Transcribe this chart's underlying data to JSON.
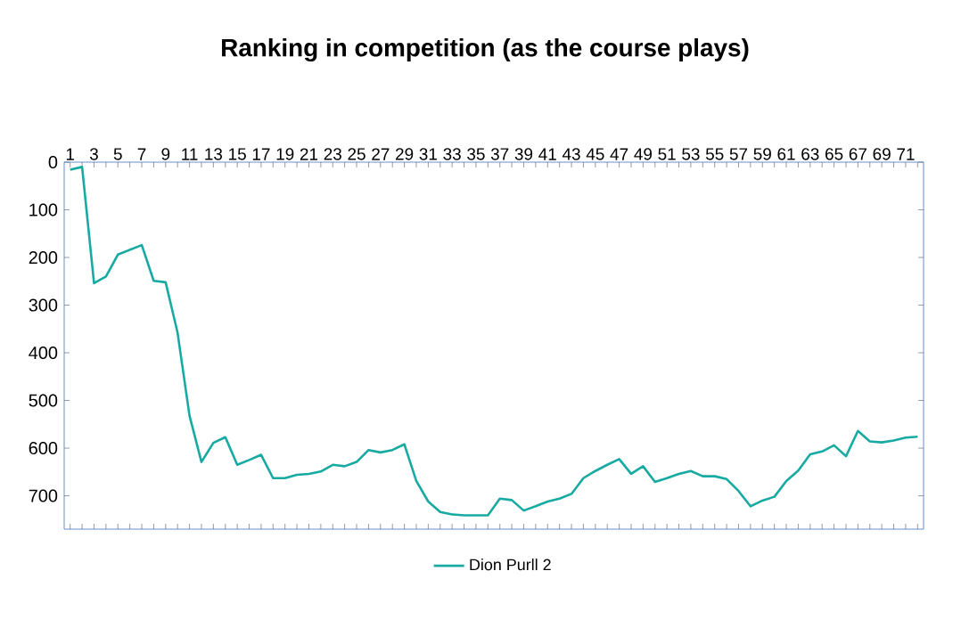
{
  "chart_data": {
    "type": "line",
    "title": "Ranking in competition (as the course plays)",
    "categories": [
      "1",
      null,
      "3",
      null,
      "5",
      null,
      "7",
      null,
      "9",
      null,
      "11",
      null,
      "13",
      null,
      "15",
      null,
      "17",
      null,
      "19",
      null,
      "21",
      null,
      "23",
      null,
      "25",
      null,
      "27",
      null,
      "29",
      null,
      "31",
      null,
      "33",
      null,
      "35",
      null,
      "37",
      null,
      "39",
      null,
      "41",
      null,
      "43",
      null,
      "45",
      null,
      "47",
      null,
      "49",
      null,
      "51",
      null,
      "53",
      null,
      "55",
      null,
      "57",
      null,
      "59",
      null,
      "61",
      null,
      "63",
      null,
      "65",
      null,
      "67",
      null,
      "69",
      null,
      "71",
      null
    ],
    "series": [
      {
        "name": "Dion Purll 2",
        "color": "#17aaa2",
        "values": [
          16,
          10,
          254,
          240,
          194,
          184,
          174,
          249,
          252,
          358,
          532,
          629,
          589,
          577,
          635,
          625,
          614,
          663,
          663,
          656,
          654,
          649,
          635,
          638,
          629,
          604,
          609,
          604,
          592,
          669,
          712,
          734,
          739,
          741,
          741,
          741,
          706,
          709,
          731,
          722,
          712,
          706,
          696,
          663,
          648,
          635,
          623,
          654,
          638,
          671,
          663,
          654,
          648,
          659,
          659,
          665,
          690,
          722,
          710,
          702,
          669,
          647,
          613,
          607,
          594,
          617,
          564,
          586,
          588,
          584,
          578,
          576
        ]
      }
    ],
    "ylim": [
      770,
      0
    ],
    "yticks": [
      0,
      100,
      200,
      300,
      400,
      500,
      600,
      700
    ],
    "grid": false,
    "legend": "bottom",
    "marker": "none",
    "line_style": "solid"
  }
}
